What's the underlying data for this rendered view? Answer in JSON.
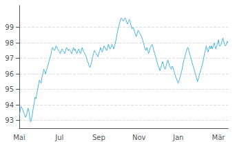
{
  "chart_data": {
    "type": "line",
    "categories": [
      "Mai",
      null,
      null,
      null,
      null,
      null,
      null,
      null,
      null,
      null,
      null,
      null,
      null,
      null,
      null,
      null,
      null,
      null,
      null,
      null,
      null,
      null,
      null,
      null,
      null,
      null,
      null,
      null,
      null,
      null,
      null,
      null,
      null,
      null,
      null,
      null,
      null,
      null,
      null,
      null,
      null,
      null,
      null,
      null,
      null,
      null,
      "Jul",
      null,
      null,
      null,
      null,
      null,
      null,
      null,
      null,
      null,
      null,
      null,
      null,
      null,
      null,
      null,
      null,
      null,
      null,
      null,
      null,
      null,
      null,
      null,
      null,
      null,
      null,
      null,
      null,
      null,
      null,
      null,
      null,
      null,
      null,
      null,
      null,
      null,
      null,
      null,
      null,
      null,
      null,
      null,
      null,
      "Sep",
      null,
      null,
      null,
      null,
      null,
      null,
      null,
      null,
      null,
      null,
      null,
      null,
      null,
      null,
      null,
      null,
      null,
      null,
      null,
      null,
      null,
      null,
      null,
      null,
      null,
      null,
      null,
      null,
      null,
      null,
      null,
      null,
      null,
      null,
      null,
      null,
      null,
      null,
      null,
      null,
      null,
      null,
      null,
      null,
      null,
      "Nov",
      null,
      null,
      null,
      null,
      null,
      null,
      null,
      null,
      null,
      null,
      null,
      null,
      null,
      null,
      null,
      null,
      null,
      null,
      null,
      null,
      null,
      null,
      null,
      null,
      null,
      null,
      null,
      null,
      null,
      null,
      null,
      null,
      null,
      null,
      null,
      null,
      null,
      null,
      null,
      null,
      null,
      null,
      null,
      null,
      "Jan",
      null,
      null,
      null,
      null,
      null,
      null,
      null,
      null,
      null,
      null,
      null,
      null,
      null,
      null,
      null,
      null,
      null,
      null,
      null,
      null,
      null,
      null,
      null,
      null,
      null,
      null,
      null,
      null,
      null,
      null,
      null,
      null,
      null,
      null,
      null,
      null,
      null,
      null,
      null,
      null,
      null,
      null,
      null,
      null,
      null,
      "Mär",
      null,
      null,
      null,
      null,
      null,
      null,
      null,
      null,
      null,
      null,
      null
    ],
    "values": [
      93.3,
      93.6,
      93.9,
      93.8,
      93.7,
      93.5,
      93.4,
      93.2,
      93.3,
      93.5,
      93.8,
      93.6,
      93.2,
      92.9,
      93.1,
      93.4,
      93.8,
      94.1,
      94.5,
      94.4,
      94.7,
      95.0,
      95.3,
      95.6,
      95.5,
      95.4,
      95.8,
      96.0,
      96.3,
      96.2,
      96.0,
      96.2,
      96.4,
      96.6,
      96.8,
      97.0,
      97.2,
      97.5,
      97.7,
      97.6,
      97.5,
      97.6,
      97.8,
      97.7,
      97.6,
      97.5,
      97.4,
      97.3,
      97.5,
      97.6,
      97.5,
      97.4,
      97.3,
      97.5,
      97.7,
      97.6,
      97.5,
      97.6,
      97.5,
      97.4,
      97.3,
      97.5,
      97.7,
      97.5,
      97.6,
      97.4,
      97.3,
      97.5,
      97.6,
      97.4,
      97.3,
      97.5,
      97.7,
      97.5,
      97.4,
      97.3,
      97.2,
      97.0,
      96.8,
      96.7,
      96.5,
      96.4,
      96.6,
      96.8,
      97.1,
      97.3,
      97.5,
      97.4,
      97.3,
      97.2,
      97.1,
      97.3,
      97.5,
      97.7,
      97.5,
      97.4,
      97.6,
      97.8,
      97.7,
      97.6,
      97.5,
      97.7,
      97.9,
      97.7,
      97.6,
      97.7,
      97.9,
      97.8,
      97.6,
      97.8,
      98.0,
      98.3,
      98.6,
      98.9,
      99.1,
      99.3,
      99.5,
      99.6,
      99.5,
      99.4,
      99.5,
      99.6,
      99.5,
      99.3,
      99.2,
      99.4,
      99.5,
      99.3,
      99.1,
      98.9,
      99.0,
      98.9,
      98.7,
      98.5,
      98.4,
      98.6,
      98.8,
      98.7,
      98.6,
      98.5,
      98.4,
      98.2,
      98.0,
      97.8,
      97.6,
      97.5,
      97.7,
      97.5,
      97.3,
      97.5,
      97.7,
      97.8,
      97.9,
      97.7,
      97.5,
      97.3,
      97.1,
      96.9,
      96.7,
      96.5,
      96.4,
      96.2,
      96.4,
      96.6,
      96.8,
      96.6,
      96.4,
      96.3,
      96.5,
      96.7,
      96.9,
      96.7,
      96.5,
      96.4,
      96.3,
      96.5,
      96.4,
      96.2,
      96.0,
      95.8,
      95.7,
      95.5,
      95.4,
      95.6,
      95.8,
      96.0,
      96.2,
      96.5,
      96.8,
      97.0,
      97.2,
      97.4,
      97.6,
      97.7,
      97.5,
      97.3,
      97.1,
      96.9,
      96.7,
      96.5,
      96.3,
      96.1,
      95.9,
      95.7,
      95.5,
      95.7,
      95.9,
      96.1,
      96.3,
      96.5,
      96.7,
      97.0,
      97.3,
      97.5,
      97.8,
      97.6,
      97.4,
      97.6,
      97.8,
      97.6,
      97.8,
      97.6,
      97.8,
      98.0,
      97.8,
      97.6,
      97.8,
      98.0,
      98.2,
      97.8,
      97.8,
      97.9,
      98.1,
      98.3,
      98.1,
      97.9,
      97.8,
      97.9,
      98.1,
      98.0
    ],
    "color": "#4ab4e0",
    "ylim": [
      92.5,
      100.4
    ],
    "yticks": [
      93,
      94,
      95,
      96,
      97,
      98,
      99
    ],
    "grid": true
  }
}
